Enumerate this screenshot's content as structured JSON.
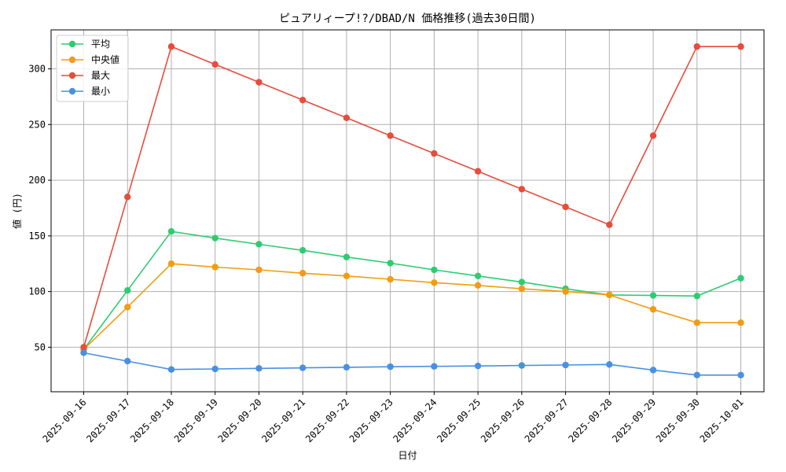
{
  "chart_data": {
    "type": "line",
    "title": "ピュアリィープ!?/DBAD/N 価格推移(過去30日間)",
    "xlabel": "日付",
    "ylabel": "値 (円)",
    "categories": [
      "2025-09-16",
      "2025-09-17",
      "2025-09-18",
      "2025-09-19",
      "2025-09-20",
      "2025-09-21",
      "2025-09-22",
      "2025-09-23",
      "2025-09-24",
      "2025-09-25",
      "2025-09-26",
      "2025-09-27",
      "2025-09-28",
      "2025-09-29",
      "2025-09-30",
      "2025-10-01"
    ],
    "ylim": [
      10,
      335
    ],
    "yticks": [
      50,
      100,
      150,
      200,
      250,
      300
    ],
    "grid": true,
    "legend_position": "top-left",
    "series": [
      {
        "name": "平均",
        "color": "#2ecc71",
        "values": [
          48,
          101,
          154,
          148,
          142.5,
          137,
          131,
          125.5,
          119.5,
          114,
          108.5,
          102.5,
          97,
          96.5,
          96,
          112
        ]
      },
      {
        "name": "中央値",
        "color": "#f39c12",
        "values": [
          48,
          86,
          125,
          122,
          119.5,
          116.5,
          114,
          111,
          108,
          105.5,
          102.5,
          100,
          97,
          84,
          72,
          72
        ]
      },
      {
        "name": "最大",
        "color": "#e74c3c",
        "values": [
          50,
          185,
          320,
          304,
          288,
          272,
          256,
          240,
          224,
          208,
          192,
          176,
          160,
          240,
          320,
          320
        ]
      },
      {
        "name": "最小",
        "color": "#4a90e2",
        "values": [
          45,
          37.5,
          30,
          30.5,
          31,
          31.5,
          32,
          32.5,
          32.8,
          33.2,
          33.6,
          34,
          34.5,
          29.5,
          25,
          25
        ]
      }
    ]
  }
}
